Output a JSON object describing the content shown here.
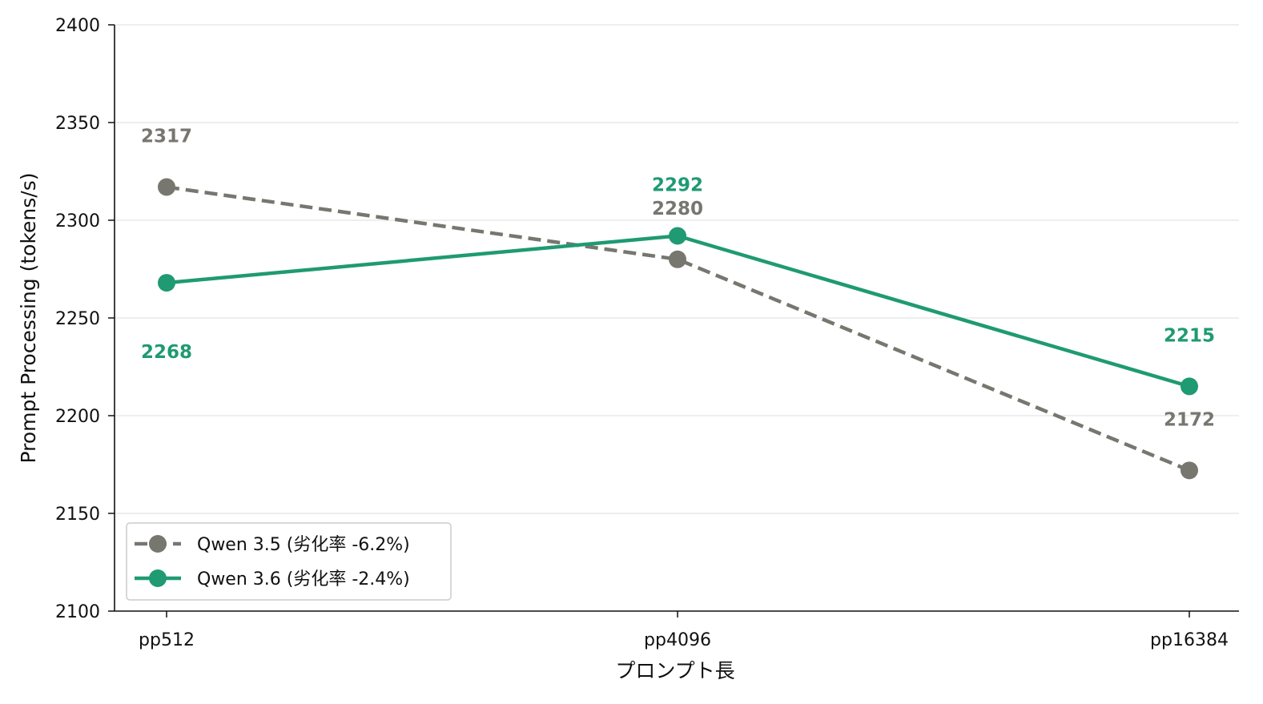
{
  "chart_data": {
    "type": "line",
    "categories": [
      "pp512",
      "pp4096",
      "pp16384"
    ],
    "xlabel": "プロンプト長",
    "ylabel": "Prompt Processing (tokens/s)",
    "ylim": [
      2100,
      2400
    ],
    "yticks": [
      2100,
      2150,
      2200,
      2250,
      2300,
      2350,
      2400
    ],
    "grid": "horizontal",
    "legend_position": "lower-left",
    "series": [
      {
        "name": "Qwen 3.5 (劣化率 -6.2%)",
        "values": [
          2317,
          2280,
          2172
        ],
        "labels": [
          "2317",
          "2280",
          "2172"
        ],
        "label_side": [
          "above",
          "above",
          "above"
        ],
        "color": "#77766f",
        "style": "dashed"
      },
      {
        "name": "Qwen 3.6 (劣化率 -2.4%)",
        "values": [
          2268,
          2292,
          2215
        ],
        "labels": [
          "2268",
          "2292",
          "2215"
        ],
        "label_side": [
          "below",
          "above",
          "above"
        ],
        "color": "#1f9a72",
        "style": "solid"
      }
    ]
  }
}
